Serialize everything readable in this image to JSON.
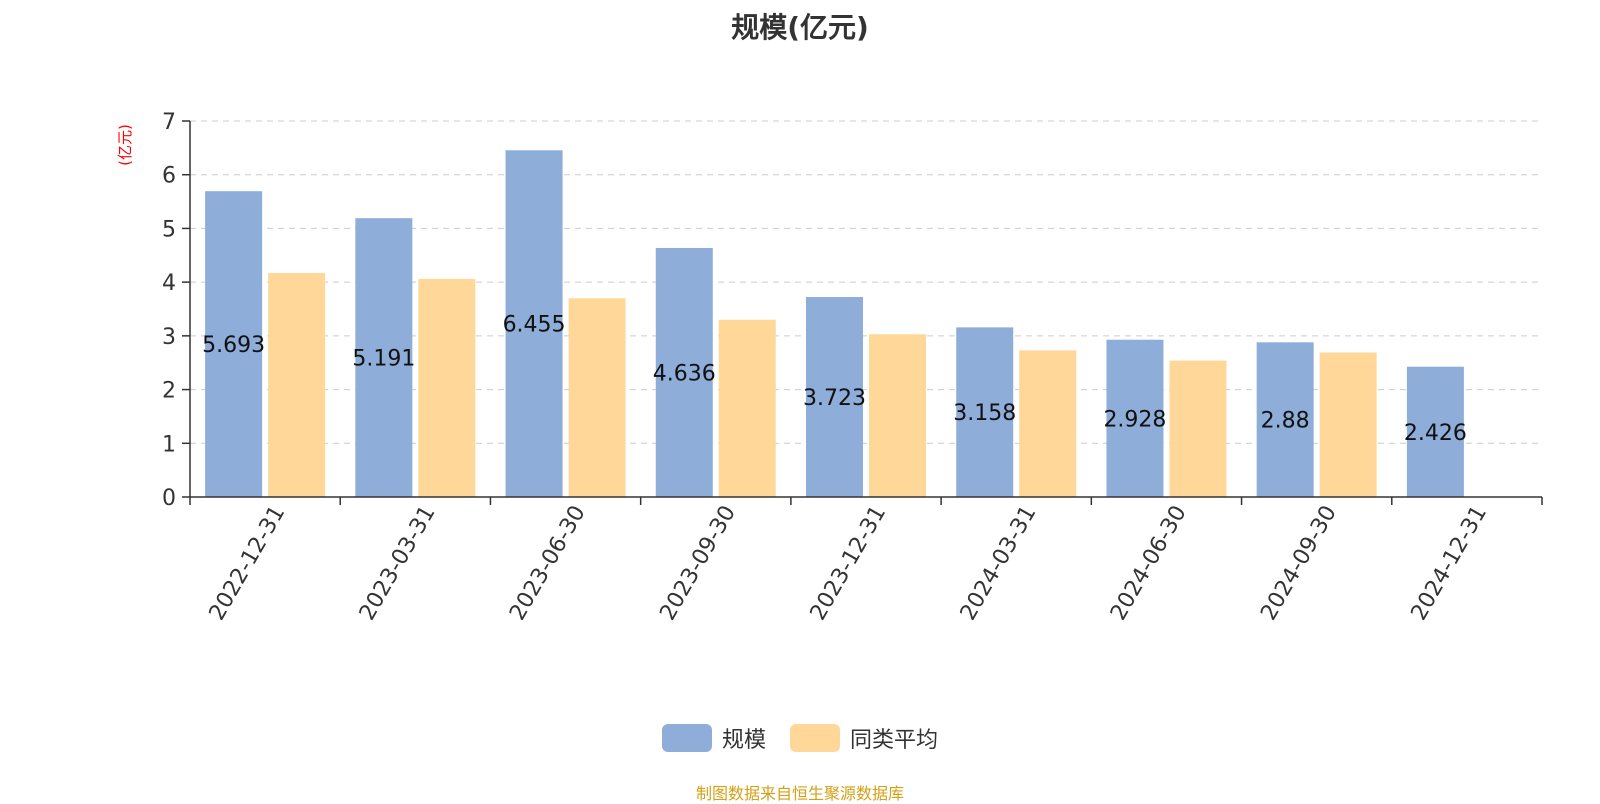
{
  "chart_data": {
    "type": "bar",
    "title": "规模(亿元)",
    "ylabel": "(亿元)",
    "xlabel": "",
    "categories": [
      "2022-12-31",
      "2023-03-31",
      "2023-06-30",
      "2023-09-30",
      "2023-12-31",
      "2024-03-31",
      "2024-06-30",
      "2024-09-30",
      "2024-12-31"
    ],
    "series": [
      {
        "name": "规模",
        "color": "#8eadd9",
        "values": [
          5.693,
          5.191,
          6.455,
          4.636,
          3.723,
          3.158,
          2.928,
          2.88,
          2.426
        ],
        "data_labels": [
          "5.693",
          "5.191",
          "6.455",
          "4.636",
          "3.723",
          "3.158",
          "2.928",
          "2.88",
          "2.426"
        ]
      },
      {
        "name": "同类平均",
        "color": "#ffd899",
        "values": [
          4.17,
          4.06,
          3.7,
          3.3,
          3.03,
          2.73,
          2.54,
          2.69,
          null
        ]
      }
    ],
    "ylim": [
      0,
      7
    ],
    "yticks": [
      "0",
      "1",
      "2",
      "3",
      "4",
      "5",
      "6",
      "7"
    ],
    "grid": true,
    "legend_position": "bottom-center"
  },
  "footer": {
    "source": "制图数据来自恒生聚源数据库"
  }
}
